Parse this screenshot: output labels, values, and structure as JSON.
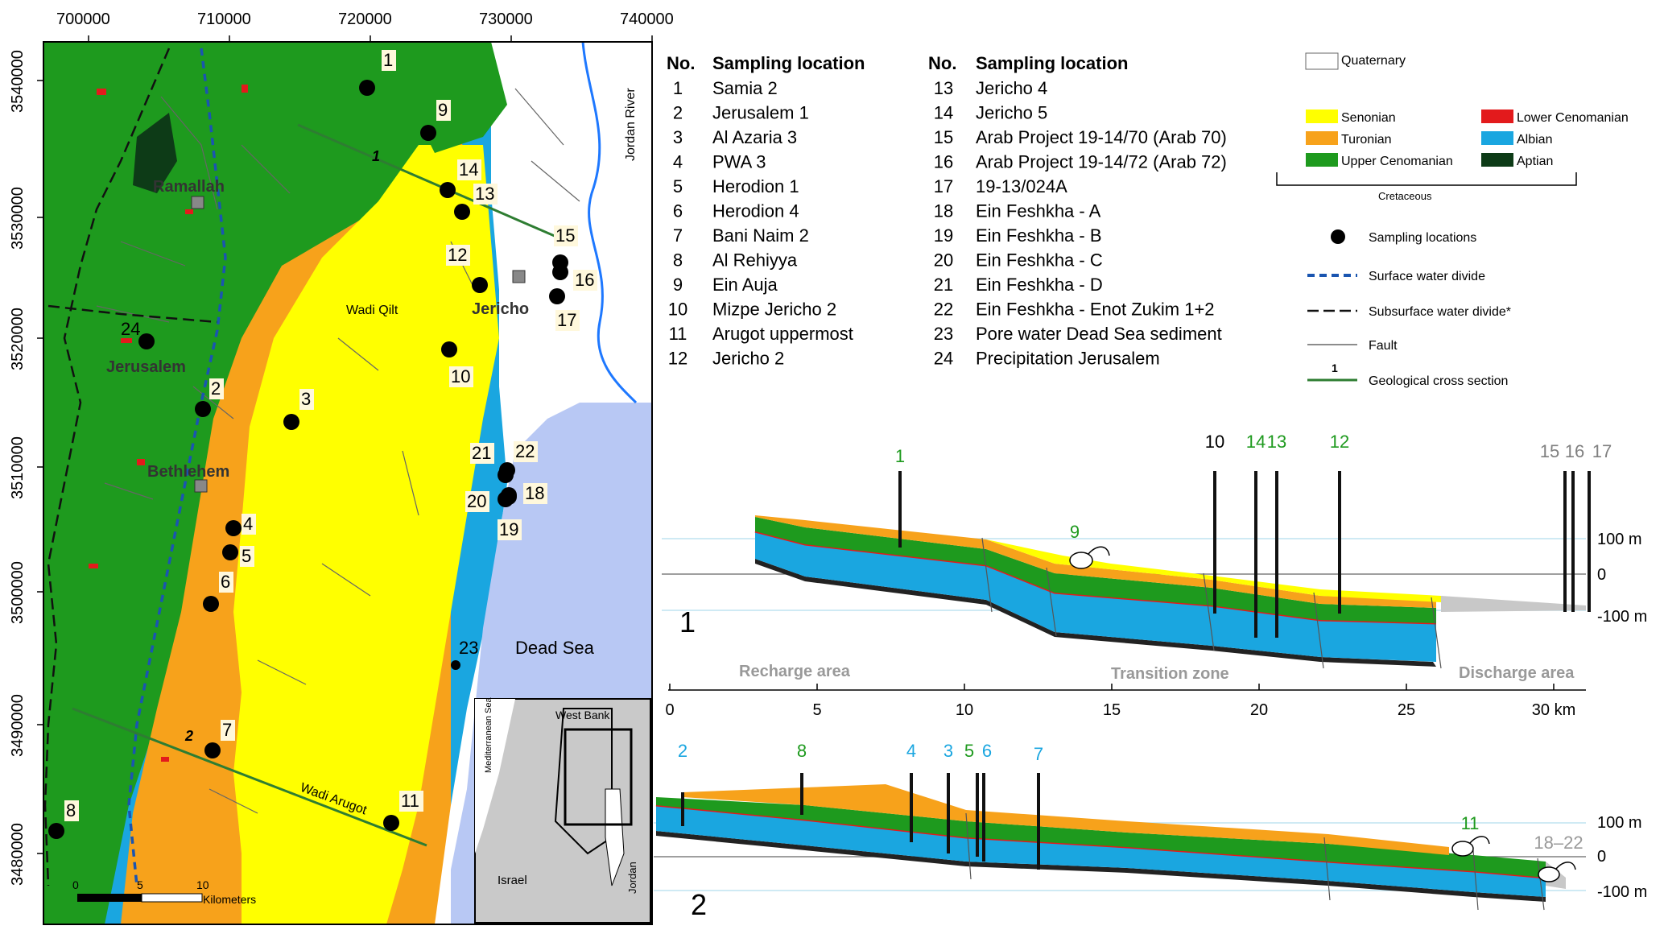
{
  "map": {
    "x_ticks": [
      "700000",
      "710000",
      "720000",
      "730000",
      "740000"
    ],
    "y_ticks": [
      "3540000",
      "3530000",
      "3520000",
      "3510000",
      "3500000",
      "3490000",
      "3480000"
    ],
    "cities": [
      "Ramallah",
      "Jerusalem",
      "Bethlehem",
      "Jericho"
    ],
    "features": {
      "wadi_qilt": "Wadi Qilt",
      "wadi_arugot": "Wadi Arugot",
      "dead_sea": "Dead Sea",
      "jordan_river": "Jordan River"
    },
    "section_labels": [
      "1",
      "2"
    ],
    "scale": {
      "ticks": [
        "0",
        "5",
        "10"
      ],
      "unit": "Kilometers"
    },
    "inset": {
      "west_bank": "West Bank",
      "sea": "Mediterranean Sea",
      "israel": "Israel",
      "jordan": "Jordan"
    },
    "points": [
      "1",
      "2",
      "3",
      "4",
      "5",
      "6",
      "7",
      "8",
      "9",
      "10",
      "11",
      "12",
      "13",
      "14",
      "15",
      "16",
      "17",
      "18",
      "19",
      "20",
      "21",
      "22",
      "23",
      "24"
    ]
  },
  "table": {
    "header_no": "No.",
    "header_loc": "Sampling location",
    "col1": [
      [
        "1",
        "Samia 2"
      ],
      [
        "2",
        "Jerusalem 1"
      ],
      [
        "3",
        "Al Azaria 3"
      ],
      [
        "4",
        "PWA 3"
      ],
      [
        "5",
        "Herodion 1"
      ],
      [
        "6",
        "Herodion 4"
      ],
      [
        "7",
        "Bani Naim 2"
      ],
      [
        "8",
        "Al Rehiyya"
      ],
      [
        "9",
        "Ein Auja"
      ],
      [
        "10",
        "Mizpe Jericho 2"
      ],
      [
        "11",
        "Arugot uppermost"
      ],
      [
        "12",
        "Jericho 2"
      ]
    ],
    "col2": [
      [
        "13",
        "Jericho 4"
      ],
      [
        "14",
        "Jericho 5"
      ],
      [
        "15",
        "Arab Project 19-14/70 (Arab 70)"
      ],
      [
        "16",
        "Arab Project 19-14/72 (Arab 72)"
      ],
      [
        "17",
        "19-13/024A"
      ],
      [
        "18",
        "Ein Feshkha - A"
      ],
      [
        "19",
        "Ein Feshkha - B"
      ],
      [
        "20",
        "Ein Feshkha  - C"
      ],
      [
        "21",
        "Ein Feshkha - D"
      ],
      [
        "22",
        "Ein Feshkha - Enot Zukim 1+2"
      ],
      [
        "23",
        "Pore water Dead Sea sediment"
      ],
      [
        "24",
        "Precipitation Jerusalem"
      ]
    ]
  },
  "legend": {
    "quaternary": "Quaternary",
    "senonian": "Senonian",
    "turonian": "Turonian",
    "upper_cenomanian": "Upper Cenomanian",
    "lower_cenomanian": "Lower Cenomanian",
    "albian": "Albian",
    "aptian": "Aptian",
    "cretaceous": "Cretaceous",
    "sampling": "Sampling locations",
    "surface_divide": "Surface water divide",
    "subsurface_divide": "Subsurface water divide*",
    "fault": "Fault",
    "cross_section_num": "1",
    "cross_section": "Geological cross section"
  },
  "colors": {
    "quaternary": "#ffffff",
    "senonian": "#ffff00",
    "turonian": "#f7a21b",
    "upper_cenomanian": "#1e9a1e",
    "lower_cenomanian": "#e31a1c",
    "albian": "#1aa6e0",
    "aptian": "#0d3b17",
    "dead_sea": "#b8c8f4",
    "jordan_river": "#1e78ff",
    "wells_green": "#1e9a1e",
    "wells_blue": "#1aa6e0",
    "wells_gray": "#808080"
  },
  "section1": {
    "label": "1",
    "wells_black": [
      "10"
    ],
    "wells_green": [
      "1",
      "14",
      "13",
      "12",
      "9"
    ],
    "wells_gray": [
      "15",
      "16"
    ],
    "well_17": "17",
    "elev_labels": [
      "100 m",
      "0",
      "-100 m"
    ],
    "zones": [
      "Recharge area",
      "Transition zone",
      "Discharge area"
    ],
    "x_ticks": [
      "0",
      "5",
      "10",
      "15",
      "20",
      "25",
      "30 km"
    ]
  },
  "section2": {
    "label": "2",
    "wells_blue": [
      "2",
      "4",
      "3",
      "6",
      "7"
    ],
    "wells_green": [
      "8",
      "5",
      "11"
    ],
    "range_label": "18–22",
    "elev_labels": [
      "100 m",
      "0",
      "-100 m"
    ]
  }
}
